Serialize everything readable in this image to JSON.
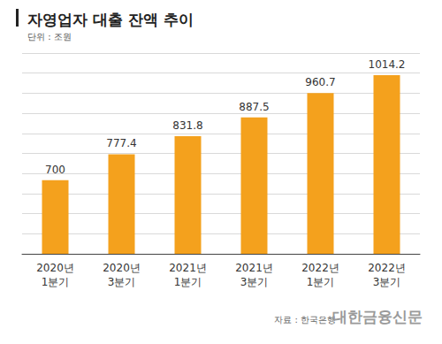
{
  "chart_data": {
    "type": "bar",
    "title": "자영업자 대출 잔액 추이",
    "subtitle": "단위 : 조원",
    "categories": [
      "2020년\n1분기",
      "2020년\n3분기",
      "2021년\n1분기",
      "2021년\n3분기",
      "2022년\n1분기",
      "2022년\n3분기"
    ],
    "values": [
      700,
      777.4,
      831.8,
      887.5,
      960.7,
      1014.2
    ],
    "color": "#F4A11D",
    "ylim": [
      480,
      1080
    ],
    "yticks": [
      480,
      540,
      600,
      660,
      720,
      780,
      840,
      900,
      960,
      1020,
      1080
    ],
    "grid": true,
    "data_labels": true,
    "tick_labels": "x",
    "annotations": [
      "자료 : 한국은행",
      "대한금융신문"
    ]
  }
}
